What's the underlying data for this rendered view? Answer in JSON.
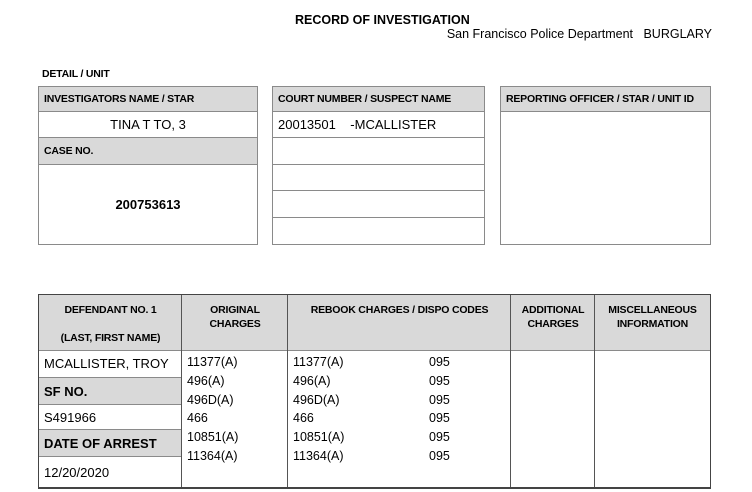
{
  "title": "RECORD OF INVESTIGATION",
  "department": "San Francisco Police Department",
  "division": "BURGLARY",
  "detail_unit_label": "DETAIL / UNIT",
  "investigator": {
    "label": "INVESTIGATORS NAME /  STAR",
    "value": "TINA T TO, 3"
  },
  "case": {
    "label": "CASE NO.",
    "value": "200753613"
  },
  "court": {
    "label": "COURT NUMBER / SUSPECT NAME",
    "rows": [
      "20013501    -MCALLISTER",
      "",
      "",
      "",
      ""
    ]
  },
  "reporting_officer": {
    "label": "REPORTING OFFICER / STAR / UNIT ID",
    "value": ""
  },
  "table": {
    "headers": {
      "defendant": "DEFENDANT NO. 1",
      "defendant_sub": "(LAST, FIRST NAME)",
      "original": "ORIGINAL CHARGES",
      "rebook": "REBOOK CHARGES / DISPO CODES",
      "additional": "ADDITIONAL CHARGES",
      "misc": "MISCELLANEOUS INFORMATION"
    },
    "defendant_name": "MCALLISTER, TROY",
    "sf_no_label": "SF NO.",
    "sf_no": "S491966",
    "date_label": "DATE OF ARREST",
    "date": "12/20/2020",
    "original_charges": [
      "11377(A)",
      "496(A)",
      "496D(A)",
      "466",
      "10851(A)",
      "11364(A)"
    ],
    "rebook_charges": [
      {
        "charge": "11377(A)",
        "code": "095"
      },
      {
        "charge": "496(A)",
        "code": "095"
      },
      {
        "charge": "496D(A)",
        "code": "095"
      },
      {
        "charge": "466",
        "code": "095"
      },
      {
        "charge": "10851(A)",
        "code": "095"
      },
      {
        "charge": "11364(A)",
        "code": "095"
      }
    ]
  }
}
